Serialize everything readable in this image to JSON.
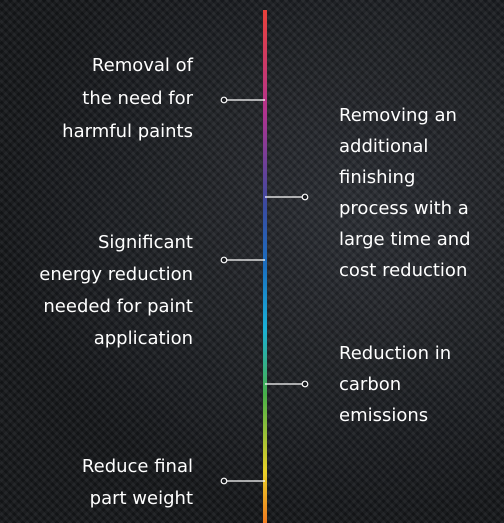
{
  "left": [
    {
      "lines": [
        "Removal of",
        "the need for",
        "harmful paints"
      ]
    },
    {
      "lines": [
        "Significant",
        "energy reduction",
        "needed for paint",
        "application"
      ]
    },
    {
      "lines": [
        "Reduce final",
        "part weight"
      ]
    }
  ],
  "right": [
    {
      "lines": [
        "Removing an",
        "additional",
        "finishing",
        "process with a",
        "large time and",
        "cost reduction"
      ]
    },
    {
      "lines": [
        "Reduction in",
        "carbon",
        "emissions"
      ]
    }
  ]
}
